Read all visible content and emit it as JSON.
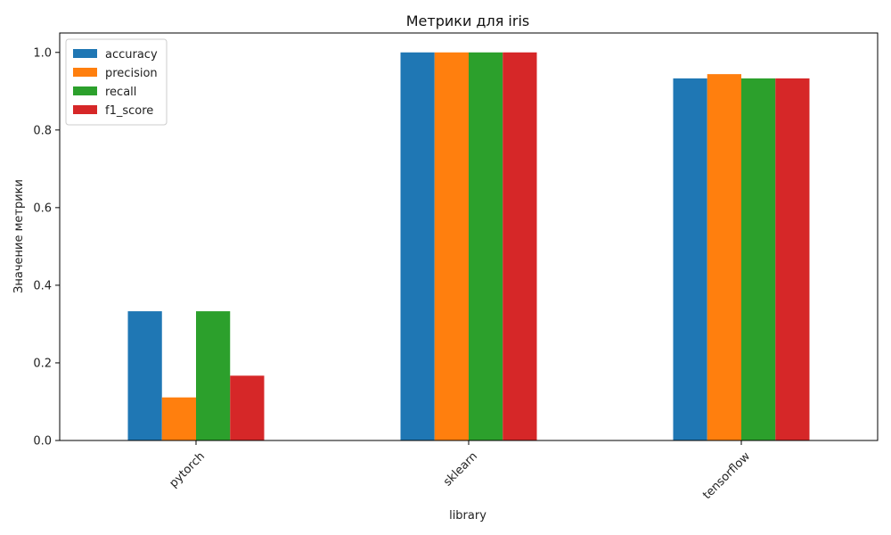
{
  "chart_data": {
    "type": "bar",
    "title": "Метрики для iris",
    "xlabel": "library",
    "ylabel": "Значение метрики",
    "categories": [
      "pytorch",
      "sklearn",
      "tensorflow"
    ],
    "series": [
      {
        "name": "accuracy",
        "color": "#1f77b4",
        "values": [
          0.333,
          1.0,
          0.933
        ]
      },
      {
        "name": "precision",
        "color": "#ff7f0e",
        "values": [
          0.111,
          1.0,
          0.944
        ]
      },
      {
        "name": "recall",
        "color": "#2ca02c",
        "values": [
          0.333,
          1.0,
          0.933
        ]
      },
      {
        "name": "f1_score",
        "color": "#d62728",
        "values": [
          0.167,
          1.0,
          0.933
        ]
      }
    ],
    "ylim": [
      0,
      1.05
    ],
    "yticks": [
      0.0,
      0.2,
      0.4,
      0.6,
      0.8,
      1.0
    ],
    "ytick_labels": [
      "0.0",
      "0.2",
      "0.4",
      "0.6",
      "0.8",
      "1.0"
    ],
    "grid": false,
    "legend_position": "top-left",
    "xtick_rotation_deg": 45
  }
}
